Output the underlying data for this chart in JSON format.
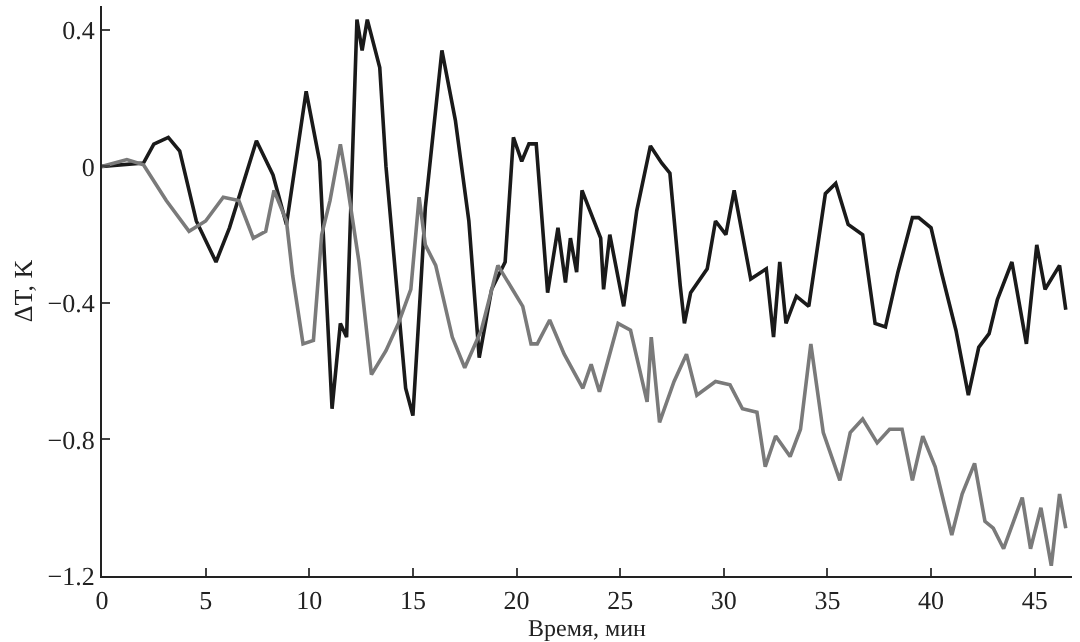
{
  "chart_data": {
    "type": "line",
    "xlabel": "Время, мин",
    "ylabel": "ΔT, K",
    "xlim": [
      0,
      46.8
    ],
    "ylim": [
      -1.2,
      0.47
    ],
    "xticks": [
      0,
      5,
      10,
      15,
      20,
      25,
      30,
      35,
      40,
      45
    ],
    "yticks": [
      {
        "value": 0.4,
        "label": "0.4"
      },
      0,
      {
        "value": -0.4,
        "label": "−0.4"
      },
      {
        "value": -0.8,
        "label": "−0.8"
      },
      {
        "value": -1.2,
        "label": "−1.2"
      }
    ],
    "marker": "none",
    "line_style": "solid",
    "series": [
      {
        "color": "#1a1a1a",
        "x": [
          0,
          2.0,
          2.5,
          3.2,
          3.75,
          4.55,
          5.5,
          6.15,
          7.45,
          8.25,
          8.9,
          9.85,
          10.5,
          11.1,
          11.5,
          11.8,
          12.3,
          12.55,
          12.8,
          13.4,
          13.7,
          14.65,
          15.0,
          15.35,
          15.6,
          16.4,
          17.05,
          17.7,
          18.2,
          18.8,
          19.45,
          19.85,
          20.25,
          20.6,
          20.95,
          21.5,
          22.0,
          22.36,
          22.6,
          22.9,
          23.16,
          24.06,
          24.2,
          24.5,
          25.17,
          25.8,
          26.46,
          27.0,
          27.4,
          27.9,
          28.1,
          28.4,
          29.2,
          29.6,
          30.1,
          30.5,
          30.9,
          31.3,
          32.05,
          32.4,
          32.7,
          33.0,
          33.5,
          34.1,
          34.9,
          35.4,
          36.0,
          36.7,
          37.3,
          37.8,
          38.4,
          39.1,
          39.4,
          40.0,
          40.5,
          41.2,
          41.8,
          42.3,
          42.8,
          43.2,
          43.9,
          44.6,
          45.1,
          45.5,
          46.2,
          46.5
        ],
        "values": [
          0,
          0.01,
          0.065,
          0.085,
          0.045,
          -0.16,
          -0.28,
          -0.18,
          0.075,
          -0.025,
          -0.17,
          0.22,
          0.015,
          -0.71,
          -0.46,
          -0.5,
          0.43,
          0.34,
          0.43,
          0.29,
          0,
          -0.65,
          -0.73,
          -0.38,
          -0.12,
          0.34,
          0.135,
          -0.16,
          -0.56,
          -0.36,
          -0.28,
          0.085,
          0.015,
          0.066,
          0.066,
          -0.37,
          -0.18,
          -0.34,
          -0.21,
          -0.31,
          -0.07,
          -0.21,
          -0.36,
          -0.2,
          -0.41,
          -0.13,
          0.06,
          0.01,
          -0.02,
          -0.35,
          -0.46,
          -0.37,
          -0.3,
          -0.16,
          -0.2,
          -0.07,
          -0.2,
          -0.33,
          -0.3,
          -0.5,
          -0.28,
          -0.46,
          -0.38,
          -0.41,
          -0.08,
          -0.05,
          -0.17,
          -0.2,
          -0.46,
          -0.47,
          -0.31,
          -0.15,
          -0.15,
          -0.18,
          -0.31,
          -0.48,
          -0.67,
          -0.53,
          -0.49,
          -0.39,
          -0.28,
          -0.52,
          -0.23,
          -0.36,
          -0.29,
          -0.42
        ]
      },
      {
        "color": "#7a7a7a",
        "x": [
          0,
          1.2,
          2.0,
          3.1,
          4.2,
          5.0,
          5.85,
          6.6,
          7.3,
          7.9,
          8.3,
          8.9,
          9.2,
          9.7,
          10.2,
          10.6,
          11.0,
          11.5,
          11.8,
          12.4,
          13.0,
          13.7,
          14.3,
          14.9,
          15.3,
          15.6,
          16.1,
          16.9,
          17.5,
          18.3,
          19.1,
          19.8,
          20.3,
          20.7,
          21.0,
          21.6,
          22.3,
          23.2,
          23.6,
          24.0,
          24.9,
          25.5,
          26.3,
          26.5,
          26.9,
          27.6,
          28.2,
          28.7,
          29.6,
          30.3,
          30.9,
          31.6,
          32.0,
          32.5,
          33.2,
          33.7,
          34.2,
          34.8,
          35.6,
          36.1,
          36.7,
          37.4,
          38.0,
          38.6,
          39.1,
          39.6,
          40.2,
          41.0,
          41.5,
          42.1,
          42.6,
          43.0,
          43.5,
          44.4,
          44.8,
          45.3,
          45.8,
          46.2,
          46.5
        ],
        "values": [
          0,
          0.02,
          0.005,
          -0.1,
          -0.19,
          -0.16,
          -0.09,
          -0.1,
          -0.21,
          -0.19,
          -0.07,
          -0.16,
          -0.32,
          -0.52,
          -0.51,
          -0.2,
          -0.1,
          0.065,
          -0.04,
          -0.28,
          -0.61,
          -0.54,
          -0.46,
          -0.36,
          -0.09,
          -0.23,
          -0.29,
          -0.5,
          -0.59,
          -0.48,
          -0.29,
          -0.36,
          -0.41,
          -0.52,
          -0.52,
          -0.45,
          -0.55,
          -0.65,
          -0.58,
          -0.66,
          -0.46,
          -0.48,
          -0.69,
          -0.5,
          -0.75,
          -0.63,
          -0.55,
          -0.67,
          -0.63,
          -0.64,
          -0.71,
          -0.72,
          -0.88,
          -0.79,
          -0.85,
          -0.77,
          -0.52,
          -0.78,
          -0.92,
          -0.78,
          -0.74,
          -0.81,
          -0.77,
          -0.77,
          -0.92,
          -0.79,
          -0.88,
          -1.08,
          -0.96,
          -0.87,
          -1.04,
          -1.06,
          -1.12,
          -0.97,
          -1.12,
          -1.0,
          -1.17,
          -0.96,
          -1.06
        ]
      }
    ]
  }
}
